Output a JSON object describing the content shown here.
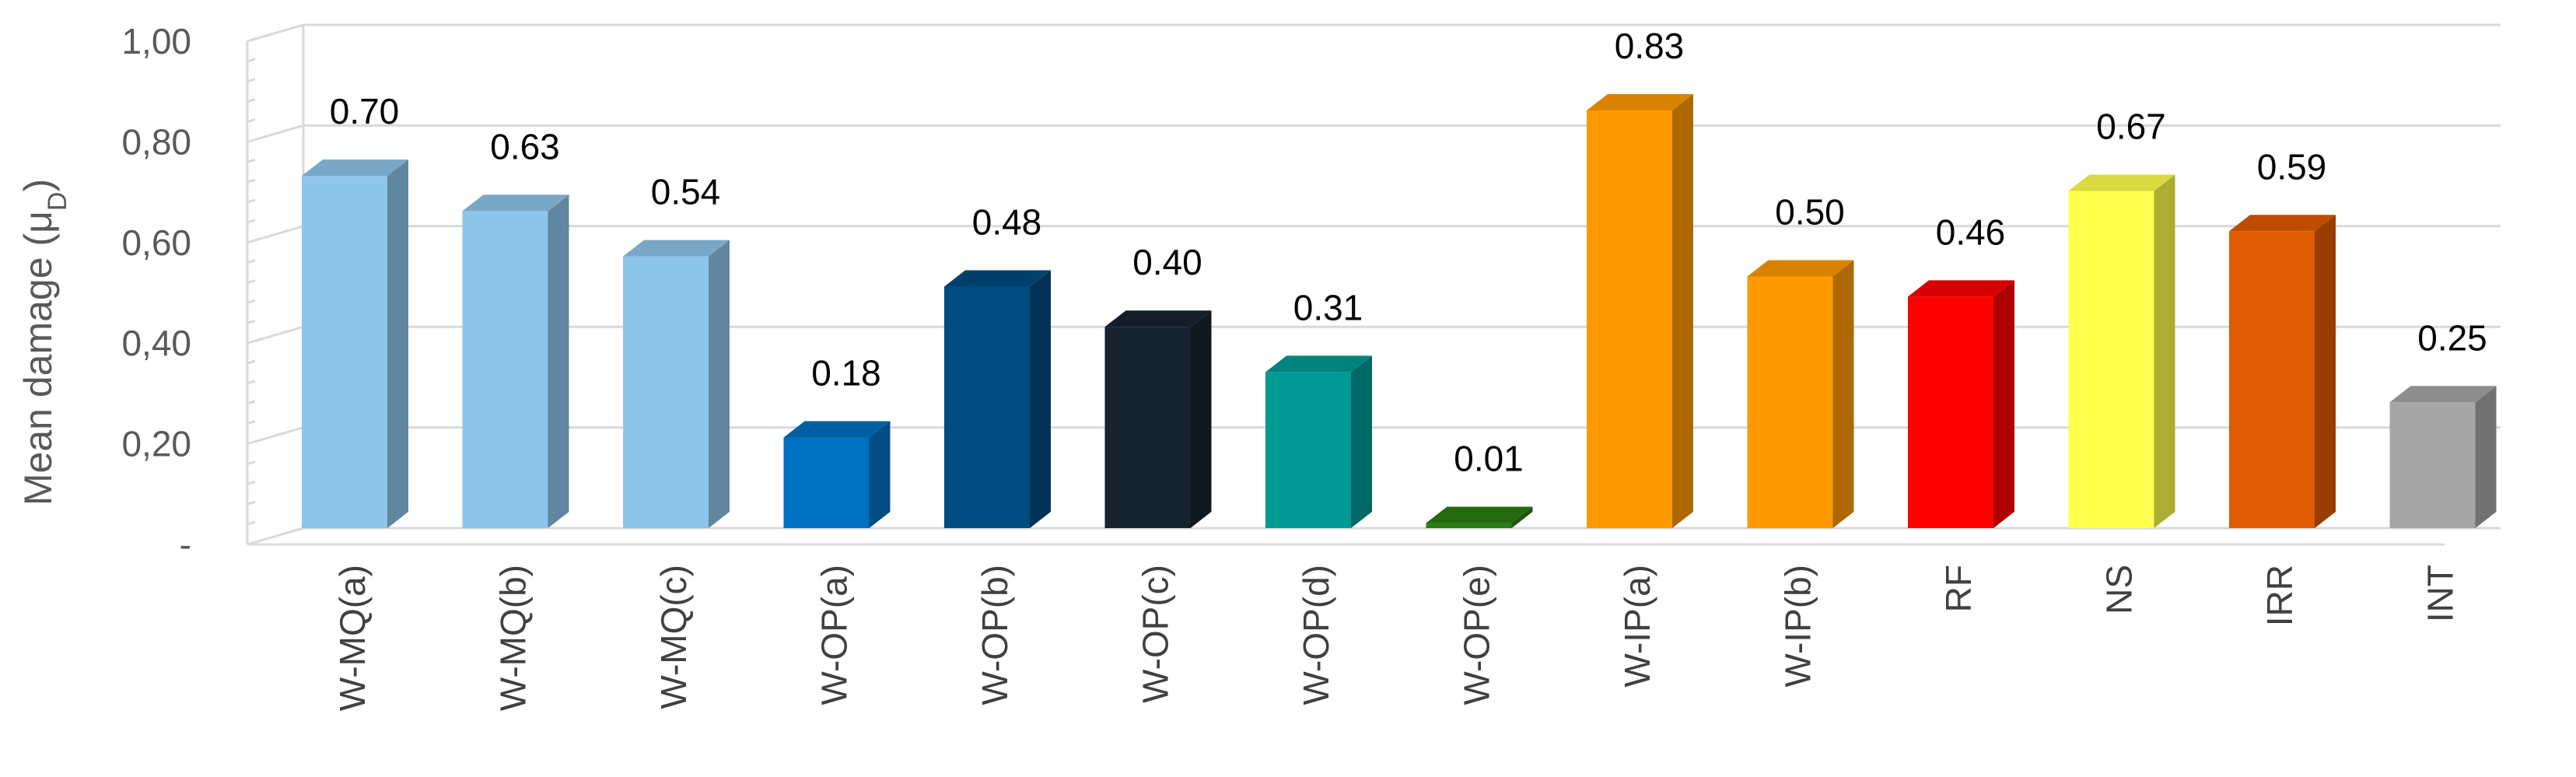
{
  "chart_data": {
    "type": "bar",
    "style": "3d-column",
    "ylabel": "Mean damage (μD)",
    "ylabel_main": "Mean damage (μ",
    "ylabel_sub": "D",
    "ylabel_close": ")",
    "ylim": [
      0,
      1.0
    ],
    "yticks": [
      0,
      0.2,
      0.4,
      0.6,
      0.8,
      1.0
    ],
    "ytick_labels": [
      "-",
      "0,20",
      "0,40",
      "0,60",
      "0,80",
      "1,00"
    ],
    "grid": true,
    "categories": [
      "W-MQ(a)",
      "W-MQ(b)",
      "W-MQ(c)",
      "W-OP(a)",
      "W-OP(b)",
      "W-OP(c)",
      "W-OP(d)",
      "W-OP(e)",
      "W-IP(a)",
      "W-IP(b)",
      "RF",
      "NS",
      "IRR",
      "INT"
    ],
    "values": [
      0.7,
      0.63,
      0.54,
      0.18,
      0.48,
      0.4,
      0.31,
      0.01,
      0.83,
      0.5,
      0.46,
      0.67,
      0.59,
      0.25
    ],
    "data_labels": [
      "0.70",
      "0.63",
      "0.54",
      "0.18",
      "0.48",
      "0.40",
      "0.31",
      "0.01",
      "0.83",
      "0.50",
      "0.46",
      "0.67",
      "0.59",
      "0.25"
    ],
    "colors": [
      "#8ec5ea",
      "#8ec5ea",
      "#8ec5ea",
      "#0070c0",
      "#004b7f",
      "#17232f",
      "#009a94",
      "#2c7d14",
      "#ff9900",
      "#ff9900",
      "#ff0000",
      "#ffff4d",
      "#e05a00",
      "#a6a6a6"
    ]
  }
}
